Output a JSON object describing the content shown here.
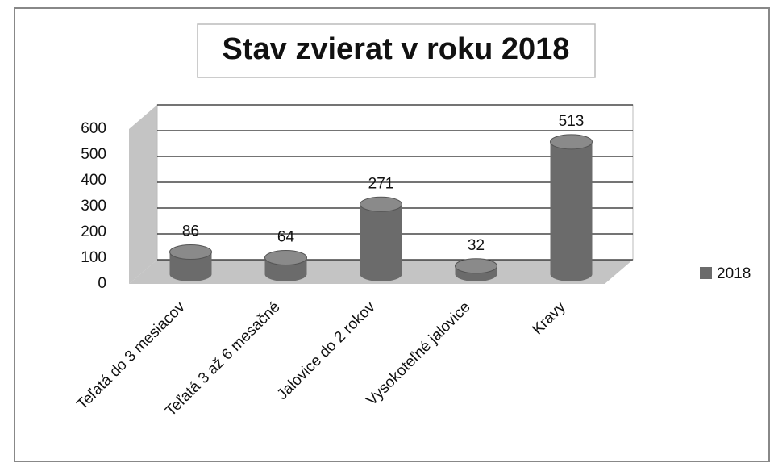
{
  "chart_data": {
    "type": "bar3d",
    "title": "Stav zvierat v roku 2018",
    "categories": [
      "Teľatá do 3 mesiacov",
      "Teľatá 3 až 6 mesačné",
      "Jalovice do 2 rokov",
      "Vysokoteľné jalovice",
      "Kravy"
    ],
    "series": [
      {
        "name": "2018",
        "color": "#6b6b6b",
        "values": [
          86,
          64,
          271,
          32,
          513
        ]
      }
    ],
    "ylim": [
      0,
      600
    ],
    "yticks": [
      0,
      100,
      200,
      300,
      400,
      500,
      600
    ],
    "grid": true,
    "legend": "right"
  }
}
